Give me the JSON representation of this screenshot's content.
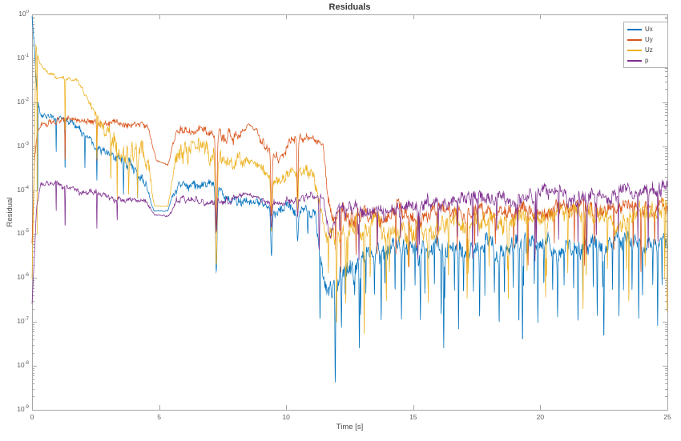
{
  "figure": {
    "background": "#ffffff",
    "axis_color": "#a6a6a6",
    "tick_label_color": "#5c5c5c"
  },
  "chart_data": {
    "type": "line",
    "title": "Residuals",
    "xlabel": "Time [s]",
    "ylabel": "Residual",
    "x_range": [
      0,
      25
    ],
    "x_ticks": [
      "0",
      "5",
      "10",
      "15",
      "20",
      "25"
    ],
    "y_scale": "log10",
    "y_tick_base": "10",
    "y_tick_exponents": [
      "0",
      "-1",
      "-2",
      "-3",
      "-4",
      "-5",
      "-6",
      "-7",
      "-8",
      "-9"
    ],
    "grid": false,
    "box": true,
    "legend": {
      "position": "northeast",
      "entries": [
        "Ux",
        "Uy",
        "Uz",
        "p"
      ]
    },
    "series": [
      {
        "name": "Ux",
        "color": "#0072BD",
        "seed": 11,
        "keyframes": [
          [
            0,
            -0.05,
            0.01
          ],
          [
            0.07,
            -0.55,
            0.04
          ],
          [
            0.18,
            -1.7,
            0.06
          ],
          [
            0.32,
            -2.28,
            0.12
          ],
          [
            0.7,
            -2.3,
            0.13
          ],
          [
            1.2,
            -2.38,
            0.13
          ],
          [
            1.6,
            -2.5,
            0.11
          ],
          [
            2.0,
            -2.68,
            0.11
          ],
          [
            2.45,
            -2.95,
            0.12
          ],
          [
            2.8,
            -3.1,
            0.13
          ],
          [
            3.4,
            -3.3,
            0.17
          ],
          [
            4.0,
            -3.5,
            0.18
          ],
          [
            4.45,
            -3.8,
            0.15
          ],
          [
            4.78,
            -4.46,
            0.02
          ],
          [
            5.35,
            -4.48,
            0.02
          ],
          [
            5.68,
            -3.9,
            0.18
          ],
          [
            6.3,
            -3.85,
            0.16
          ],
          [
            7.05,
            -3.92,
            0.14
          ],
          [
            7.6,
            -4.15,
            0.18
          ],
          [
            8.2,
            -4.2,
            0.18
          ],
          [
            8.7,
            -4.3,
            0.13
          ],
          [
            9.25,
            -4.35,
            0.13
          ],
          [
            9.65,
            -4.55,
            0.18
          ],
          [
            10.2,
            -4.4,
            0.2
          ],
          [
            10.75,
            -4.35,
            0.2
          ],
          [
            11.15,
            -4.6,
            0.2
          ],
          [
            11.35,
            -5.6,
            0.3
          ],
          [
            11.6,
            -6.2,
            0.35
          ],
          [
            12.0,
            -6.1,
            0.4
          ],
          [
            12.6,
            -5.85,
            0.4
          ],
          [
            13.2,
            -5.55,
            0.35
          ],
          [
            14,
            -5.45,
            0.33
          ],
          [
            16,
            -5.4,
            0.32
          ],
          [
            18,
            -5.35,
            0.32
          ],
          [
            20,
            -5.3,
            0.32
          ],
          [
            22,
            -5.25,
            0.32
          ],
          [
            25,
            -5.2,
            0.32
          ]
        ],
        "dips": [
          [
            0.22,
            -4.6,
            0.008
          ],
          [
            0.95,
            -3.15,
            0.012
          ],
          [
            1.3,
            -3.6,
            0.012
          ],
          [
            2.08,
            -3.5,
            0.012
          ],
          [
            2.55,
            -3.8,
            0.012
          ],
          [
            3.6,
            -4.1,
            0.014
          ],
          [
            4.15,
            -4.2,
            0.012
          ],
          [
            7.25,
            -5.85,
            0.045
          ],
          [
            9.42,
            -5.5,
            0.04
          ],
          [
            10.45,
            -5.15,
            0.035
          ],
          [
            10.85,
            -5.0,
            0.02
          ],
          [
            11.93,
            -8.4,
            0.02
          ],
          [
            12.88,
            -7.6,
            0.018
          ],
          [
            16.2,
            -7.6,
            0.018
          ],
          [
            19.3,
            -7.5,
            0.018
          ],
          [
            22.5,
            -7.4,
            0.018
          ]
        ],
        "dip_trains": [
          [
            11.35,
            25,
            0.78,
            -7.0,
            0.016
          ],
          [
            11.55,
            25,
            0.39,
            -6.3,
            0.012
          ]
        ]
      },
      {
        "name": "Uy",
        "color": "#D95319",
        "seed": 23,
        "keyframes": [
          [
            0,
            -5.2,
            0.03
          ],
          [
            0.1,
            -3.3,
            0.08
          ],
          [
            0.22,
            -2.6,
            0.1
          ],
          [
            0.4,
            -2.45,
            0.1
          ],
          [
            1.0,
            -2.42,
            0.11
          ],
          [
            2.0,
            -2.42,
            0.11
          ],
          [
            3.0,
            -2.45,
            0.12
          ],
          [
            4.0,
            -2.5,
            0.12
          ],
          [
            4.55,
            -2.6,
            0.1
          ],
          [
            4.9,
            -3.3,
            0.03
          ],
          [
            5.35,
            -3.42,
            0.03
          ],
          [
            5.68,
            -2.65,
            0.14
          ],
          [
            6.5,
            -2.6,
            0.14
          ],
          [
            7.1,
            -2.65,
            0.14
          ],
          [
            7.65,
            -2.85,
            0.25
          ],
          [
            8.15,
            -2.7,
            0.2
          ],
          [
            8.5,
            -2.5,
            0.06
          ],
          [
            8.85,
            -2.62,
            0.1
          ],
          [
            9.15,
            -2.95,
            0.18
          ],
          [
            9.6,
            -3.3,
            0.2
          ],
          [
            10.1,
            -2.95,
            0.18
          ],
          [
            10.6,
            -2.85,
            0.15
          ],
          [
            11.1,
            -2.85,
            0.13
          ],
          [
            11.45,
            -2.9,
            0.12
          ],
          [
            11.62,
            -3.9,
            0.2
          ],
          [
            11.8,
            -4.65,
            0.28
          ],
          [
            12.3,
            -4.6,
            0.28
          ],
          [
            13,
            -4.55,
            0.27
          ],
          [
            15,
            -4.52,
            0.27
          ],
          [
            18,
            -4.5,
            0.26
          ],
          [
            21,
            -4.45,
            0.26
          ],
          [
            25,
            -4.4,
            0.26
          ]
        ],
        "dips": [
          [
            1.3,
            -3.4,
            0.012
          ],
          [
            2.55,
            -3.35,
            0.012
          ],
          [
            7.25,
            -4.85,
            0.04
          ],
          [
            9.42,
            -4.6,
            0.038
          ],
          [
            10.45,
            -4.2,
            0.03
          ]
        ],
        "dip_trains": [
          [
            12.0,
            25,
            0.78,
            -5.35,
            0.013
          ],
          [
            12.35,
            25,
            2.34,
            -5.85,
            0.016
          ]
        ]
      },
      {
        "name": "Uz",
        "color": "#EDB120",
        "seed": 37,
        "keyframes": [
          [
            0,
            -6.0,
            0.03
          ],
          [
            0.08,
            -3.8,
            0.1
          ],
          [
            0.15,
            -0.72,
            0.05
          ],
          [
            0.3,
            -1.12,
            0.06
          ],
          [
            0.6,
            -1.3,
            0.06
          ],
          [
            0.95,
            -1.4,
            0.07
          ],
          [
            1.3,
            -1.47,
            0.07
          ],
          [
            1.75,
            -1.48,
            0.07
          ],
          [
            2.1,
            -1.8,
            0.12
          ],
          [
            2.5,
            -2.25,
            0.18
          ],
          [
            2.85,
            -2.6,
            0.25
          ],
          [
            3.3,
            -2.85,
            0.38
          ],
          [
            3.9,
            -3.1,
            0.45
          ],
          [
            4.35,
            -3.3,
            0.45
          ],
          [
            4.6,
            -3.6,
            0.25
          ],
          [
            4.82,
            -4.35,
            0.02
          ],
          [
            5.35,
            -4.38,
            0.02
          ],
          [
            5.68,
            -3.35,
            0.4
          ],
          [
            6.2,
            -3.2,
            0.4
          ],
          [
            7.05,
            -3.25,
            0.36
          ],
          [
            7.65,
            -3.5,
            0.32
          ],
          [
            8.2,
            -3.35,
            0.28
          ],
          [
            8.6,
            -3.3,
            0.07
          ],
          [
            9.0,
            -3.55,
            0.18
          ],
          [
            9.6,
            -3.85,
            0.22
          ],
          [
            10.15,
            -3.6,
            0.22
          ],
          [
            10.7,
            -3.4,
            0.22
          ],
          [
            11.1,
            -3.6,
            0.25
          ],
          [
            11.35,
            -4.6,
            0.3
          ],
          [
            11.6,
            -5.25,
            0.35
          ],
          [
            12.0,
            -5.0,
            0.37
          ],
          [
            12.6,
            -4.9,
            0.36
          ],
          [
            14,
            -4.82,
            0.35
          ],
          [
            17,
            -4.75,
            0.34
          ],
          [
            20,
            -4.68,
            0.33
          ],
          [
            25,
            -4.58,
            0.33
          ]
        ],
        "dips": [
          [
            0.2,
            -5.0,
            0.008
          ],
          [
            1.3,
            -2.75,
            0.012
          ],
          [
            2.55,
            -3.3,
            0.012
          ],
          [
            3.1,
            -3.8,
            0.014
          ],
          [
            3.35,
            -4.25,
            0.012
          ],
          [
            3.8,
            -4.1,
            0.014
          ],
          [
            4.15,
            -4.2,
            0.012
          ],
          [
            7.25,
            -5.7,
            0.045
          ],
          [
            9.42,
            -4.95,
            0.04
          ],
          [
            10.45,
            -4.55,
            0.03
          ],
          [
            11.98,
            -7.1,
            0.018
          ],
          [
            13.07,
            -7.3,
            0.018
          ]
        ],
        "dip_trains": [
          [
            11.7,
            25,
            0.78,
            -5.9,
            0.014
          ],
          [
            12.45,
            25,
            1.56,
            -6.6,
            0.016
          ]
        ]
      },
      {
        "name": "p",
        "color": "#7E2F8E",
        "seed": 53,
        "keyframes": [
          [
            0,
            -6.6,
            0.02
          ],
          [
            0.18,
            -4.4,
            0.08
          ],
          [
            0.35,
            -3.88,
            0.1
          ],
          [
            0.8,
            -3.86,
            0.1
          ],
          [
            1.5,
            -3.96,
            0.1
          ],
          [
            2.2,
            -4.06,
            0.11
          ],
          [
            3.0,
            -4.14,
            0.11
          ],
          [
            3.8,
            -4.2,
            0.11
          ],
          [
            4.5,
            -4.28,
            0.08
          ],
          [
            4.82,
            -4.55,
            0.03
          ],
          [
            5.35,
            -4.57,
            0.03
          ],
          [
            5.68,
            -4.25,
            0.12
          ],
          [
            6.5,
            -4.2,
            0.11
          ],
          [
            7.1,
            -4.25,
            0.11
          ],
          [
            7.65,
            -4.3,
            0.13
          ],
          [
            8.3,
            -4.1,
            0.09
          ],
          [
            8.75,
            -4.12,
            0.05
          ],
          [
            9.2,
            -4.25,
            0.11
          ],
          [
            9.7,
            -4.35,
            0.13
          ],
          [
            10.3,
            -4.2,
            0.13
          ],
          [
            11.0,
            -4.1,
            0.11
          ],
          [
            11.45,
            -4.15,
            0.11
          ],
          [
            11.7,
            -4.9,
            0.22
          ],
          [
            12.0,
            -4.55,
            0.26
          ],
          [
            12.6,
            -4.5,
            0.26
          ],
          [
            14,
            -4.42,
            0.26
          ],
          [
            16,
            -4.3,
            0.26
          ],
          [
            18,
            -4.22,
            0.26
          ],
          [
            20,
            -4.12,
            0.26
          ],
          [
            22.5,
            -4.08,
            0.26
          ],
          [
            25,
            -4.05,
            0.26
          ]
        ],
        "dips": [
          [
            0.95,
            -4.5,
            0.01
          ],
          [
            1.3,
            -4.9,
            0.012
          ],
          [
            2.55,
            -4.9,
            0.012
          ],
          [
            3.35,
            -4.7,
            0.012
          ],
          [
            7.25,
            -4.95,
            0.035
          ],
          [
            9.42,
            -4.85,
            0.035
          ],
          [
            10.45,
            -4.6,
            0.028
          ],
          [
            11.3,
            -5.4,
            0.02
          ]
        ],
        "dip_trains": [
          [
            12.1,
            25,
            0.78,
            -5.1,
            0.013
          ],
          [
            12.8,
            25,
            2.3,
            -5.45,
            0.015
          ]
        ]
      }
    ]
  }
}
